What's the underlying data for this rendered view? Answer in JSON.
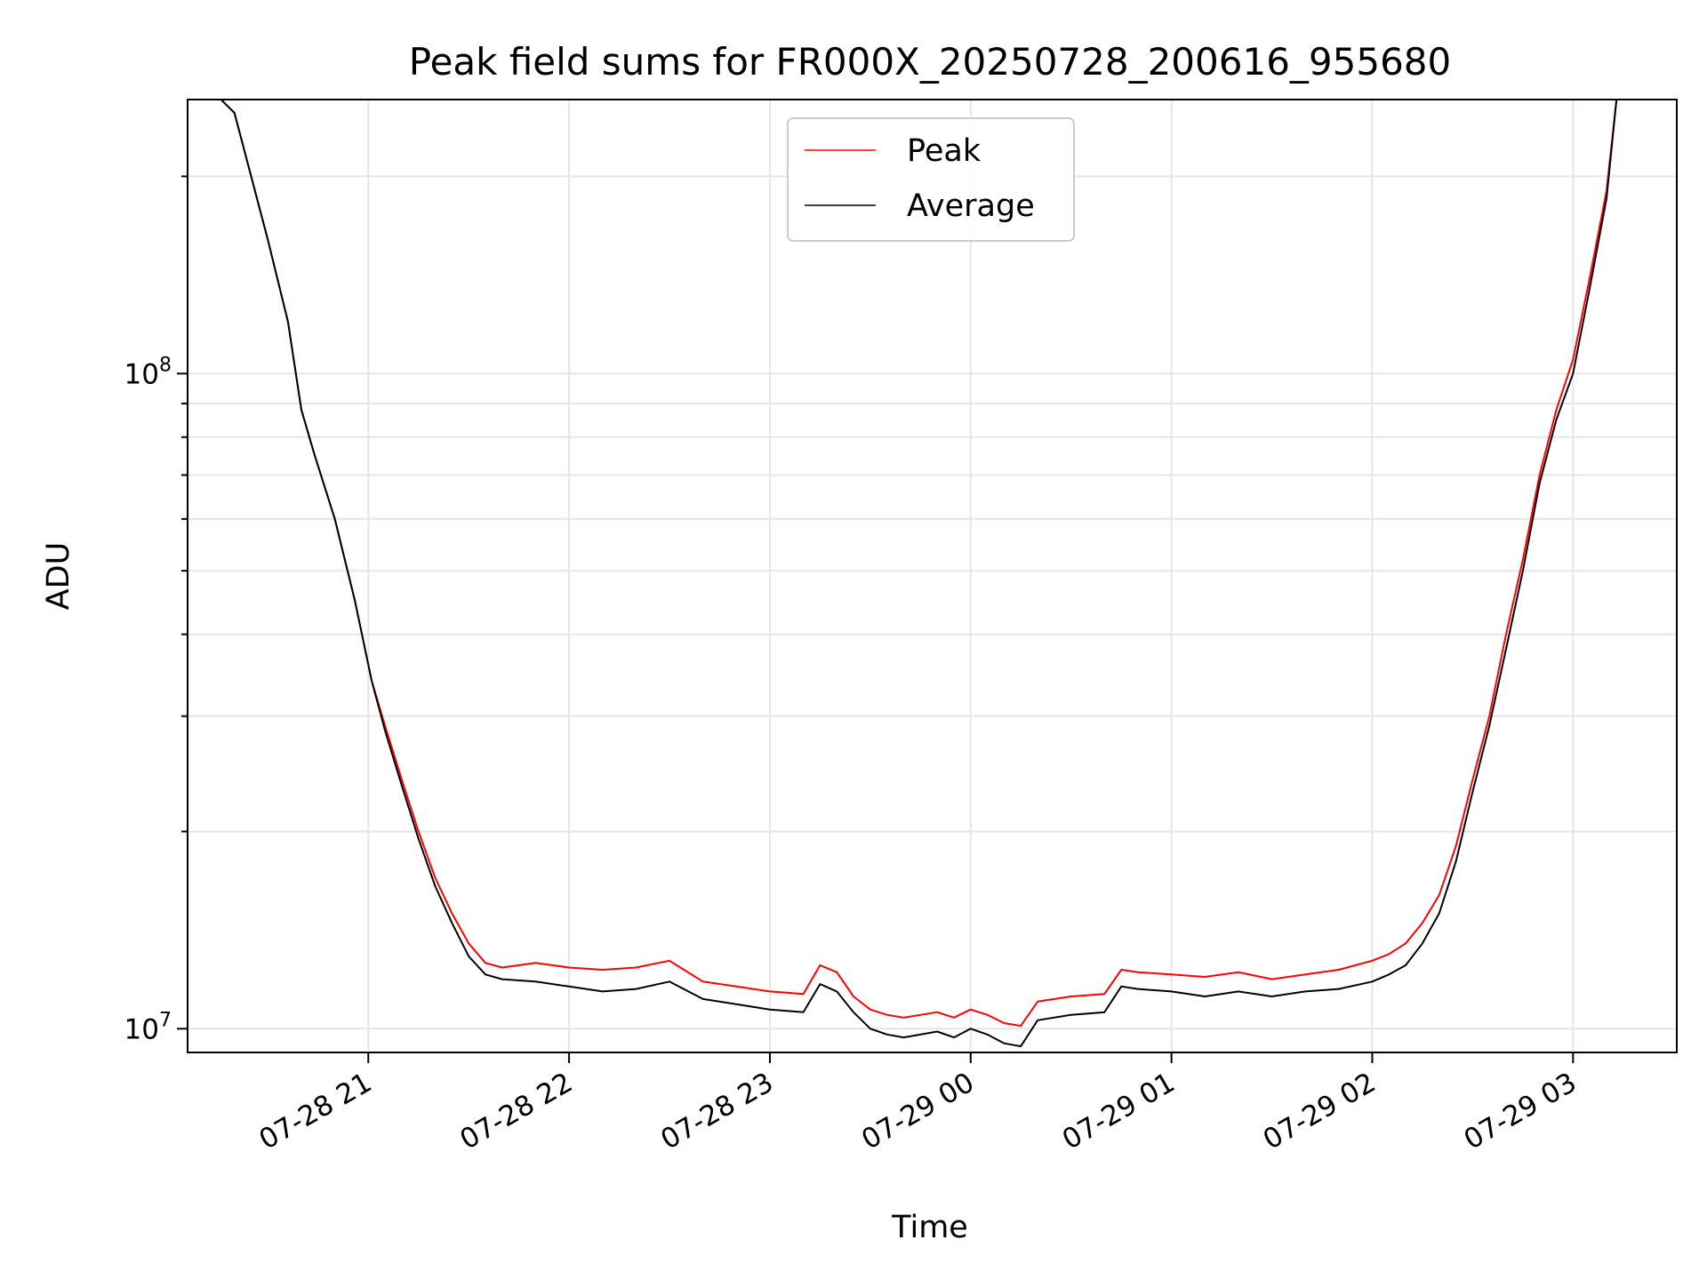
{
  "chart_data": {
    "type": "line",
    "title": "Peak field sums for FR000X_20250728_200616_955680",
    "xlabel": "Time",
    "ylabel": "ADU",
    "y_scale": "log",
    "ylim": [
      9200000,
      262000000
    ],
    "xlim": [
      "2025-07-28 20:06",
      "2025-07-29 03:31"
    ],
    "y_ticks": [
      {
        "value": 10000000,
        "base": "10",
        "exp": "7"
      },
      {
        "value": 100000000,
        "base": "10",
        "exp": "8"
      }
    ],
    "x_ticks": [
      {
        "value": "2025-07-28 21:00",
        "label": "07-28 21"
      },
      {
        "value": "2025-07-28 22:00",
        "label": "07-28 22"
      },
      {
        "value": "2025-07-28 23:00",
        "label": "07-28 23"
      },
      {
        "value": "2025-07-29 00:00",
        "label": "07-29 00"
      },
      {
        "value": "2025-07-29 01:00",
        "label": "07-29 01"
      },
      {
        "value": "2025-07-29 02:00",
        "label": "07-29 02"
      },
      {
        "value": "2025-07-29 03:00",
        "label": "07-29 03"
      }
    ],
    "grid": true,
    "legend_position": "upper center",
    "series": [
      {
        "name": "Peak",
        "color": "#ff0000",
        "x": [
          "2025-07-28 20:06",
          "2025-07-28 20:16",
          "2025-07-28 20:20",
          "2025-07-28 20:25",
          "2025-07-28 20:30",
          "2025-07-28 20:36",
          "2025-07-28 20:40",
          "2025-07-28 20:44",
          "2025-07-28 20:50",
          "2025-07-28 20:56",
          "2025-07-28 21:01",
          "2025-07-28 21:05",
          "2025-07-28 21:10",
          "2025-07-28 21:15",
          "2025-07-28 21:20",
          "2025-07-28 21:25",
          "2025-07-28 21:30",
          "2025-07-28 21:35",
          "2025-07-28 21:40",
          "2025-07-28 21:50",
          "2025-07-28 22:00",
          "2025-07-28 22:10",
          "2025-07-28 22:20",
          "2025-07-28 22:30",
          "2025-07-28 22:40",
          "2025-07-28 22:50",
          "2025-07-28 23:00",
          "2025-07-28 23:10",
          "2025-07-28 23:15",
          "2025-07-28 23:20",
          "2025-07-28 23:25",
          "2025-07-28 23:30",
          "2025-07-28 23:35",
          "2025-07-28 23:40",
          "2025-07-28 23:50",
          "2025-07-28 23:55",
          "2025-07-29 00:00",
          "2025-07-29 00:05",
          "2025-07-29 00:10",
          "2025-07-29 00:15",
          "2025-07-29 00:20",
          "2025-07-29 00:30",
          "2025-07-29 00:40",
          "2025-07-29 00:45",
          "2025-07-29 00:50",
          "2025-07-29 01:00",
          "2025-07-29 01:10",
          "2025-07-29 01:20",
          "2025-07-29 01:30",
          "2025-07-29 01:40",
          "2025-07-29 01:50",
          "2025-07-29 02:00",
          "2025-07-29 02:05",
          "2025-07-29 02:10",
          "2025-07-29 02:15",
          "2025-07-29 02:20",
          "2025-07-29 02:25",
          "2025-07-29 02:30",
          "2025-07-29 02:35",
          "2025-07-29 02:40",
          "2025-07-29 02:45",
          "2025-07-29 02:50",
          "2025-07-29 02:55",
          "2025-07-29 03:00",
          "2025-07-29 03:05",
          "2025-07-29 03:10",
          "2025-07-29 03:13",
          "2025-07-29 03:31"
        ],
        "y": [
          262000000,
          262000000,
          250000000,
          200000000,
          160000000,
          120000000,
          88000000,
          75000000,
          60000000,
          45000000,
          34000000,
          29000000,
          24000000,
          20000000,
          17000000,
          15000000,
          13500000,
          12600000,
          12400000,
          12600000,
          12400000,
          12300000,
          12400000,
          12700000,
          11800000,
          11600000,
          11400000,
          11300000,
          12500000,
          12200000,
          11200000,
          10700000,
          10500000,
          10400000,
          10600000,
          10400000,
          10700000,
          10500000,
          10200000,
          10100000,
          11000000,
          11200000,
          11300000,
          12300000,
          12200000,
          12100000,
          12000000,
          12200000,
          11900000,
          12100000,
          12300000,
          12700000,
          13000000,
          13500000,
          14500000,
          16000000,
          19000000,
          24000000,
          30000000,
          40000000,
          52000000,
          70000000,
          88000000,
          105000000,
          140000000,
          190000000,
          262000000,
          262000000
        ]
      },
      {
        "name": "Average",
        "color": "#000000",
        "x": [
          "2025-07-28 20:06",
          "2025-07-28 20:16",
          "2025-07-28 20:20",
          "2025-07-28 20:25",
          "2025-07-28 20:30",
          "2025-07-28 20:36",
          "2025-07-28 20:40",
          "2025-07-28 20:44",
          "2025-07-28 20:50",
          "2025-07-28 20:56",
          "2025-07-28 21:01",
          "2025-07-28 21:05",
          "2025-07-28 21:10",
          "2025-07-28 21:15",
          "2025-07-28 21:20",
          "2025-07-28 21:25",
          "2025-07-28 21:30",
          "2025-07-28 21:35",
          "2025-07-28 21:40",
          "2025-07-28 21:50",
          "2025-07-28 22:00",
          "2025-07-28 22:10",
          "2025-07-28 22:20",
          "2025-07-28 22:30",
          "2025-07-28 22:40",
          "2025-07-28 22:50",
          "2025-07-28 23:00",
          "2025-07-28 23:10",
          "2025-07-28 23:15",
          "2025-07-28 23:20",
          "2025-07-28 23:25",
          "2025-07-28 23:30",
          "2025-07-28 23:35",
          "2025-07-28 23:40",
          "2025-07-28 23:50",
          "2025-07-28 23:55",
          "2025-07-29 00:00",
          "2025-07-29 00:05",
          "2025-07-29 00:10",
          "2025-07-29 00:15",
          "2025-07-29 00:20",
          "2025-07-29 00:30",
          "2025-07-29 00:40",
          "2025-07-29 00:45",
          "2025-07-29 00:50",
          "2025-07-29 01:00",
          "2025-07-29 01:10",
          "2025-07-29 01:20",
          "2025-07-29 01:30",
          "2025-07-29 01:40",
          "2025-07-29 01:50",
          "2025-07-29 02:00",
          "2025-07-29 02:05",
          "2025-07-29 02:10",
          "2025-07-29 02:15",
          "2025-07-29 02:20",
          "2025-07-29 02:25",
          "2025-07-29 02:30",
          "2025-07-29 02:35",
          "2025-07-29 02:40",
          "2025-07-29 02:45",
          "2025-07-29 02:50",
          "2025-07-29 02:55",
          "2025-07-29 03:00",
          "2025-07-29 03:05",
          "2025-07-29 03:10",
          "2025-07-29 03:13",
          "2025-07-29 03:31"
        ],
        "y": [
          262000000,
          262000000,
          250000000,
          200000000,
          160000000,
          120000000,
          88000000,
          75000000,
          60000000,
          45000000,
          34000000,
          28500000,
          23500000,
          19500000,
          16500000,
          14500000,
          12900000,
          12100000,
          11900000,
          11800000,
          11600000,
          11400000,
          11500000,
          11800000,
          11100000,
          10900000,
          10700000,
          10600000,
          11700000,
          11400000,
          10600000,
          10000000,
          9800000,
          9700000,
          9900000,
          9700000,
          10000000,
          9800000,
          9500000,
          9400000,
          10300000,
          10500000,
          10600000,
          11600000,
          11500000,
          11400000,
          11200000,
          11400000,
          11200000,
          11400000,
          11500000,
          11800000,
          12100000,
          12500000,
          13500000,
          15000000,
          18000000,
          23000000,
          29000000,
          38000000,
          50000000,
          68000000,
          85000000,
          100000000,
          135000000,
          185000000,
          262000000,
          262000000
        ]
      }
    ]
  }
}
